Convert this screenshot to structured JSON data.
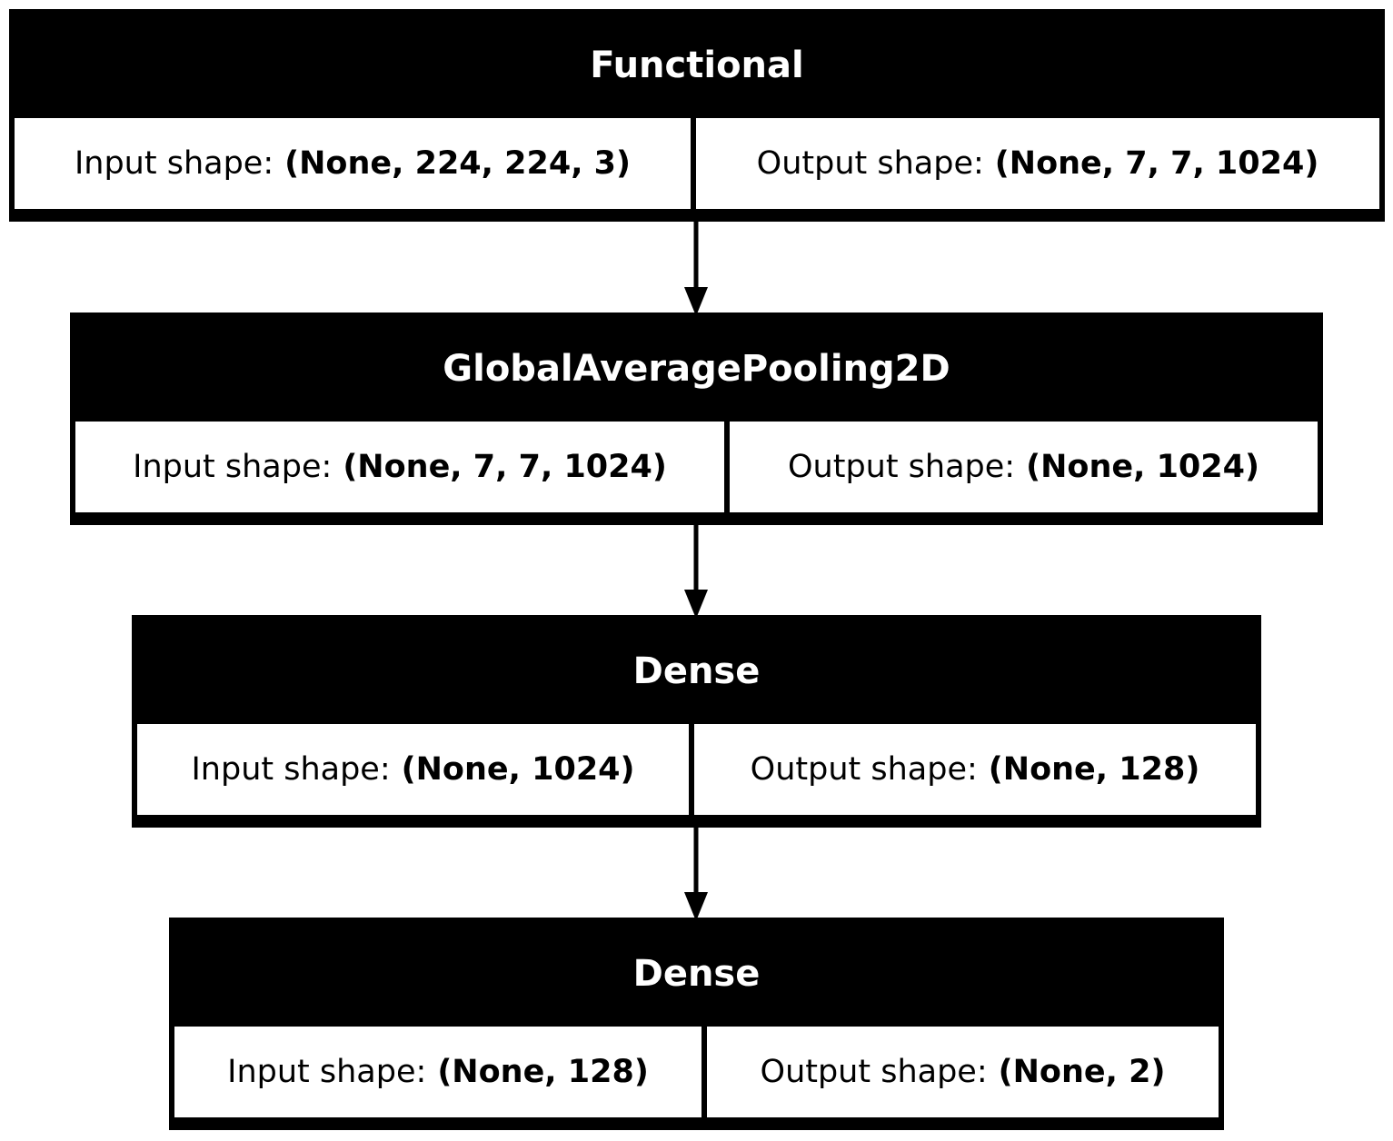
{
  "layers": [
    {
      "name": "Functional",
      "input_label": "Input shape:",
      "input_shape": "(None, 224, 224, 3)",
      "output_label": "Output shape:",
      "output_shape": "(None, 7, 7, 1024)"
    },
    {
      "name": "GlobalAveragePooling2D",
      "input_label": "Input shape:",
      "input_shape": "(None, 7, 7, 1024)",
      "output_label": "Output shape:",
      "output_shape": "(None, 1024)"
    },
    {
      "name": "Dense",
      "input_label": "Input shape:",
      "input_shape": "(None, 1024)",
      "output_label": "Output shape:",
      "output_shape": "(None, 128)"
    },
    {
      "name": "Dense",
      "input_label": "Input shape:",
      "input_shape": "(None, 128)",
      "output_label": "Output shape:",
      "output_shape": "(None, 2)"
    }
  ],
  "colors": {
    "header": "#000000",
    "cell_bg": "#ffffff",
    "text": "#000000",
    "header_text": "#ffffff"
  }
}
